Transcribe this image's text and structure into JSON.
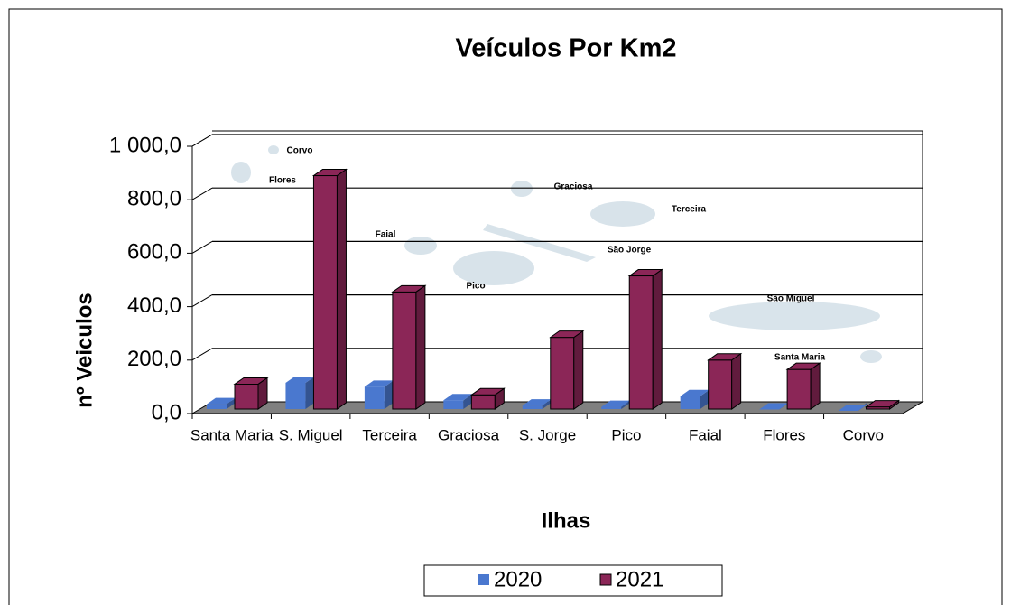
{
  "chart_data": {
    "type": "bar3d",
    "title": "Veículos Por Km2",
    "x_label": "Ilhas",
    "y_label": "nº Veiculos",
    "categories": [
      "Santa Maria",
      "S. Miguel",
      "Terceira",
      "Graciosa",
      "S. Jorge",
      "Pico",
      "Faial",
      "Flores",
      "Corvo"
    ],
    "series": [
      {
        "name": "2020",
        "color": "#4a78cf",
        "values": [
          35,
          115,
          100,
          50,
          30,
          25,
          65,
          15,
          10
        ]
      },
      {
        "name": "2021",
        "color": "#8b2657",
        "values": [
          110,
          890,
          455,
          70,
          285,
          515,
          200,
          165,
          25
        ]
      }
    ],
    "ylim": [
      0,
      1000
    ],
    "yticks": [
      {
        "value": 0,
        "label": "0,0"
      },
      {
        "value": 200,
        "label": "200,0"
      },
      {
        "value": 400,
        "label": "400,0"
      },
      {
        "value": 600,
        "label": "600,0"
      },
      {
        "value": 800,
        "label": "800,0"
      },
      {
        "value": 1000,
        "label": "1 000,0"
      }
    ],
    "grid": true,
    "legend": "bottom",
    "map_labels": [
      "Corvo",
      "Flores",
      "Graciosa",
      "Terceira",
      "Faial",
      "São Jorge",
      "Pico",
      "São Miguel",
      "Santa Maria"
    ]
  }
}
